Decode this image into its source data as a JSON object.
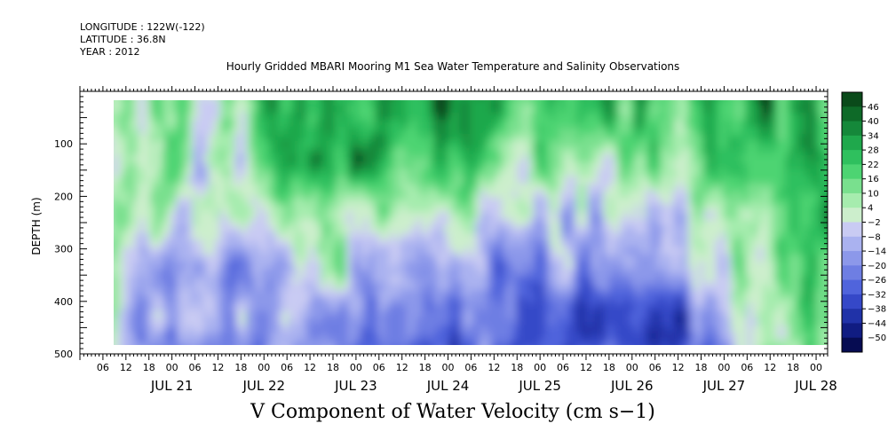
{
  "meta": {
    "longitude": "LONGITUDE : 122W(-122)",
    "latitude": "LATITUDE : 36.8N",
    "year": "YEAR : 2012"
  },
  "chart_data": {
    "type": "heatmap",
    "title": "Hourly Gridded MBARI Mooring M1 Sea Water Temperature and Salinity Observations",
    "variable_label": "V Component of Water Velocity (cm s−1)",
    "ylabel": "DEPTH (m)",
    "xlabel": "",
    "y_axis": {
      "range": [
        0,
        500
      ],
      "inverted": true,
      "ticks": [
        100,
        200,
        300,
        400,
        500
      ]
    },
    "x_axis": {
      "start": "2012-07-20 00:00",
      "end": "2012-07-28 03:00",
      "hour_ticks": [
        "06",
        "12",
        "18",
        "00",
        "06",
        "12",
        "18",
        "00",
        "06",
        "12",
        "18",
        "00",
        "06",
        "12",
        "18",
        "00",
        "06",
        "12",
        "18",
        "00",
        "06",
        "12",
        "18",
        "00",
        "06",
        "12",
        "18",
        "00",
        "06",
        "12",
        "18",
        "00"
      ],
      "day_labels": [
        "JUL 21",
        "JUL 22",
        "JUL 23",
        "JUL 24",
        "JUL 25",
        "JUL 26",
        "JUL 27",
        "JUL 28"
      ]
    },
    "data_extent": {
      "time_start": "2012-07-20 03:00",
      "time_end": "2012-07-28 02:00",
      "depth_top": 20,
      "depth_bottom": 490
    },
    "colorbar": {
      "levels": [
        46,
        40,
        34,
        28,
        22,
        16,
        10,
        4,
        -2,
        -8,
        -14,
        -20,
        -26,
        -32,
        -38,
        -44,
        -50
      ],
      "colors": [
        "#0a4a1a",
        "#0e6a28",
        "#15883a",
        "#1fa84c",
        "#2fc05e",
        "#4dd472",
        "#79e08e",
        "#a6ecae",
        "#cceecc",
        "#c9cbf3",
        "#aab2f0",
        "#8c98ea",
        "#6e7ee3",
        "#5064dc",
        "#3548c8",
        "#2032a8",
        "#101c82",
        "#060c52"
      ]
    },
    "field_summary": [
      {
        "time": "2012-07-20 06:00",
        "depth": 50,
        "value": -10
      },
      {
        "time": "2012-07-20 18:00",
        "depth": 120,
        "value": 16
      },
      {
        "time": "2012-07-21 09:00",
        "depth": 300,
        "value": -18
      },
      {
        "time": "2012-07-22 09:00",
        "depth": 100,
        "value": 20
      },
      {
        "time": "2012-07-23 09:00",
        "depth": 50,
        "value": 30
      },
      {
        "time": "2012-07-23 18:00",
        "depth": 350,
        "value": -22
      },
      {
        "time": "2012-07-24 09:00",
        "depth": 40,
        "value": 36
      },
      {
        "time": "2012-07-24 21:00",
        "depth": 250,
        "value": -20
      },
      {
        "time": "2012-07-25 06:00",
        "depth": 60,
        "value": 28
      },
      {
        "time": "2012-07-25 18:00",
        "depth": 380,
        "value": -26
      },
      {
        "time": "2012-07-26 15:00",
        "depth": 380,
        "value": -28
      },
      {
        "time": "2012-07-26 21:00",
        "depth": 60,
        "value": 26
      },
      {
        "time": "2012-07-27 12:00",
        "depth": 300,
        "value": 18
      },
      {
        "time": "2012-07-28 00:00",
        "depth": 300,
        "value": 24
      }
    ]
  }
}
